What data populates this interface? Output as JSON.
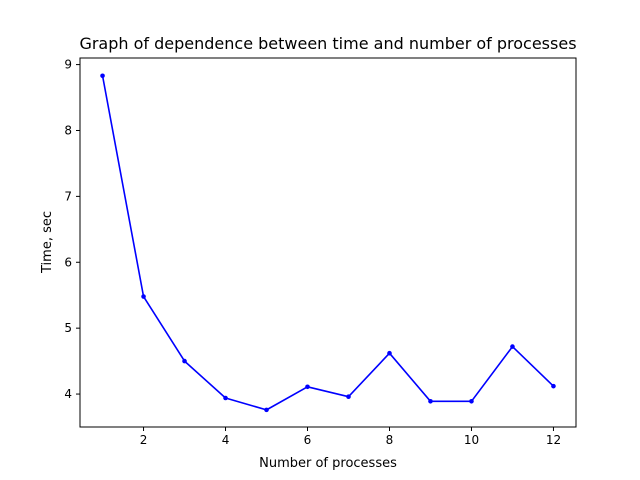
{
  "chart_data": {
    "type": "line",
    "title": "Graph of dependence between time and number of processes",
    "xlabel": "Number of processes",
    "ylabel": "Time, sec",
    "xlim": [
      0.45,
      12.55
    ],
    "ylim": [
      3.5,
      9.1
    ],
    "xticks": [
      2,
      4,
      6,
      8,
      10,
      12
    ],
    "yticks": [
      4,
      5,
      6,
      7,
      8,
      9
    ],
    "grid": false,
    "colors": {
      "line": "#0000ff"
    },
    "series": [
      {
        "x": [
          1,
          2,
          3,
          4,
          5,
          6,
          7,
          8,
          9,
          10,
          11,
          12
        ],
        "values": [
          8.83,
          5.48,
          4.5,
          3.94,
          3.76,
          4.11,
          3.96,
          4.62,
          3.89,
          3.89,
          4.72,
          4.12
        ]
      }
    ]
  }
}
